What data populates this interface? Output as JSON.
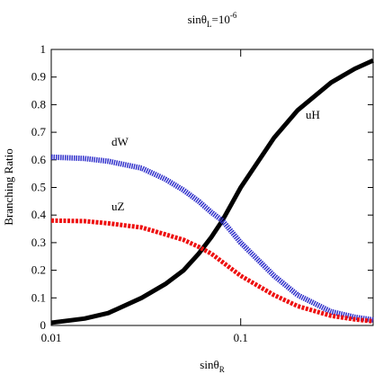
{
  "chart_data": {
    "type": "line",
    "title": {
      "base": "sinθ",
      "sub": "L",
      "main": "=10",
      "sup": "-6"
    },
    "x_label": {
      "base": "sinθ",
      "sub": "R"
    },
    "y_label": "Branching Ratio",
    "x": [
      0.01,
      0.015,
      0.02,
      0.03,
      0.04,
      0.05,
      0.06,
      0.07,
      0.08,
      0.1,
      0.15,
      0.2,
      0.3,
      0.4,
      0.5
    ],
    "series": [
      {
        "name": "uH",
        "color": "#000000",
        "values": [
          0.01,
          0.025,
          0.045,
          0.1,
          0.15,
          0.2,
          0.26,
          0.32,
          0.38,
          0.5,
          0.68,
          0.78,
          0.88,
          0.93,
          0.96
        ]
      },
      {
        "name": "dW",
        "color": "#3333cc",
        "values": [
          0.61,
          0.605,
          0.595,
          0.57,
          0.53,
          0.49,
          0.45,
          0.41,
          0.38,
          0.3,
          0.18,
          0.11,
          0.05,
          0.03,
          0.02
        ]
      },
      {
        "name": "uZ",
        "color": "#ee1111",
        "values": [
          0.38,
          0.378,
          0.37,
          0.355,
          0.33,
          0.31,
          0.285,
          0.26,
          0.23,
          0.18,
          0.11,
          0.07,
          0.035,
          0.022,
          0.015
        ]
      }
    ],
    "x_log": true,
    "xlim": [
      0.01,
      0.5
    ],
    "xticks": [
      0.01,
      0.1
    ],
    "ylim": [
      0,
      1
    ],
    "yticks": [
      0,
      0.1,
      0.2,
      0.3,
      0.4,
      0.5,
      0.6,
      0.7,
      0.8,
      0.9,
      1
    ]
  }
}
